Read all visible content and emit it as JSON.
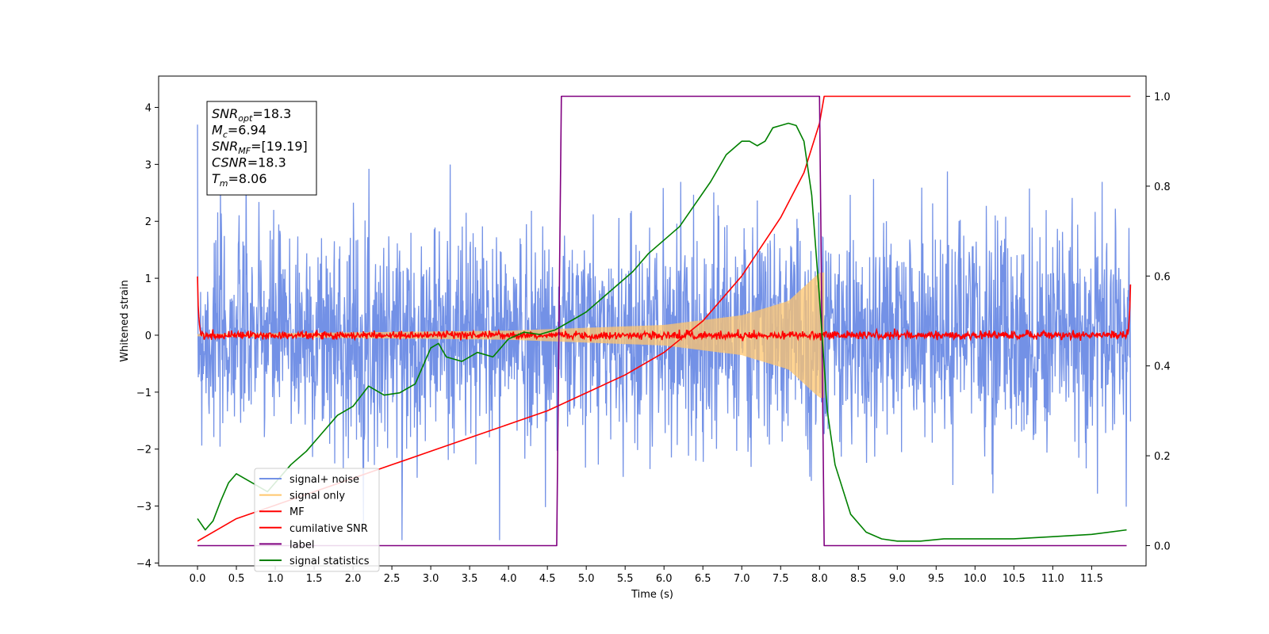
{
  "chart_data": {
    "type": "line",
    "xlabel": "Time (s)",
    "ylabel": "Whitened strain",
    "xlim": [
      -0.5,
      12.2
    ],
    "ylim": [
      -4.05,
      4.55
    ],
    "ylim_right": [
      -0.045,
      1.045
    ],
    "x_ticks": [
      "0.0",
      "0.5",
      "1.0",
      "1.5",
      "2.0",
      "2.5",
      "3.0",
      "3.5",
      "4.0",
      "4.5",
      "5.0",
      "5.5",
      "6.0",
      "6.5",
      "7.0",
      "7.5",
      "8.0",
      "8.5",
      "9.0",
      "9.5",
      "10.0",
      "10.5",
      "11.0",
      "11.5"
    ],
    "y_ticks_left": [
      "−4",
      "−3",
      "−2",
      "−1",
      "0",
      "1",
      "2",
      "3",
      "4"
    ],
    "y_ticks_right": [
      "0.0",
      "0.2",
      "0.4",
      "0.6",
      "0.8",
      "1.0"
    ],
    "grid": false,
    "legend_position": "lower-left",
    "info_box": {
      "lines": [
        {
          "sym": "SNR",
          "sub": "opt",
          "value": "=18.3"
        },
        {
          "sym": "M",
          "sub": "c",
          "value": "=6.94"
        },
        {
          "sym": "SNR",
          "sub": "MF",
          "value": "=[19.19]"
        },
        {
          "sym": "CSNR",
          "sub": "",
          "value": "=18.3"
        },
        {
          "sym": "T",
          "sub": "m",
          "value": "=8.06"
        }
      ]
    },
    "series": [
      {
        "name": "signal+ noise",
        "color": "#7391e6",
        "axis": "left",
        "kind": "noise",
        "x_range": [
          0,
          12
        ],
        "amplitude_sd": 0.95
      },
      {
        "name": "signal only",
        "color": "#ffc66d",
        "axis": "left",
        "kind": "chirp",
        "x_range": [
          0,
          8.06
        ],
        "envelope": [
          [
            0,
            0.02
          ],
          [
            4,
            0.08
          ],
          [
            6,
            0.18
          ],
          [
            7,
            0.35
          ],
          [
            7.6,
            0.6
          ],
          [
            8.0,
            1.1
          ]
        ]
      },
      {
        "name": "MF",
        "color": "#ff0000",
        "axis": "left",
        "kind": "noise",
        "x_range": [
          0,
          12
        ],
        "amplitude_sd": 0.035,
        "end_spikes": [
          [
            0,
            1.0
          ],
          [
            12,
            0.9
          ]
        ]
      },
      {
        "name": "cumilative SNR",
        "color": "#ff0000",
        "axis": "right",
        "x": [
          0.0,
          0.5,
          1.0,
          1.5,
          2.0,
          2.5,
          3.0,
          3.5,
          4.0,
          4.5,
          5.0,
          5.5,
          6.0,
          6.5,
          7.0,
          7.5,
          7.8,
          8.0,
          8.06,
          12.0
        ],
        "y": [
          0.01,
          0.06,
          0.09,
          0.12,
          0.15,
          0.18,
          0.21,
          0.24,
          0.27,
          0.3,
          0.34,
          0.38,
          0.43,
          0.5,
          0.6,
          0.73,
          0.83,
          0.94,
          1.0,
          1.0
        ]
      },
      {
        "name": "label",
        "color": "#800080",
        "axis": "right",
        "x": [
          0.0,
          4.62,
          4.68,
          8.0,
          8.06,
          11.95
        ],
        "y": [
          0.0,
          0.0,
          1.0,
          1.0,
          0.0,
          0.0
        ]
      },
      {
        "name": "signal statistics",
        "color": "#008000",
        "axis": "right",
        "x": [
          0.0,
          0.1,
          0.2,
          0.3,
          0.4,
          0.5,
          0.6,
          0.7,
          0.8,
          0.9,
          1.0,
          1.2,
          1.4,
          1.6,
          1.8,
          2.0,
          2.2,
          2.4,
          2.6,
          2.8,
          3.0,
          3.1,
          3.2,
          3.4,
          3.6,
          3.8,
          4.0,
          4.2,
          4.4,
          4.6,
          4.8,
          5.0,
          5.2,
          5.4,
          5.6,
          5.8,
          6.0,
          6.2,
          6.4,
          6.6,
          6.8,
          7.0,
          7.1,
          7.2,
          7.3,
          7.4,
          7.5,
          7.6,
          7.7,
          7.8,
          7.9,
          8.0,
          8.1,
          8.2,
          8.4,
          8.6,
          8.8,
          9.0,
          9.3,
          9.6,
          10.0,
          10.5,
          11.0,
          11.5,
          11.95
        ],
        "y": [
          0.06,
          0.035,
          0.055,
          0.1,
          0.14,
          0.16,
          0.15,
          0.14,
          0.13,
          0.12,
          0.14,
          0.18,
          0.21,
          0.25,
          0.29,
          0.31,
          0.355,
          0.335,
          0.34,
          0.36,
          0.44,
          0.45,
          0.42,
          0.41,
          0.43,
          0.42,
          0.46,
          0.475,
          0.47,
          0.48,
          0.5,
          0.52,
          0.55,
          0.58,
          0.61,
          0.65,
          0.68,
          0.71,
          0.76,
          0.81,
          0.87,
          0.9,
          0.9,
          0.89,
          0.9,
          0.93,
          0.935,
          0.94,
          0.935,
          0.9,
          0.78,
          0.55,
          0.3,
          0.18,
          0.07,
          0.03,
          0.015,
          0.01,
          0.01,
          0.015,
          0.015,
          0.015,
          0.02,
          0.025,
          0.035
        ]
      }
    ]
  }
}
